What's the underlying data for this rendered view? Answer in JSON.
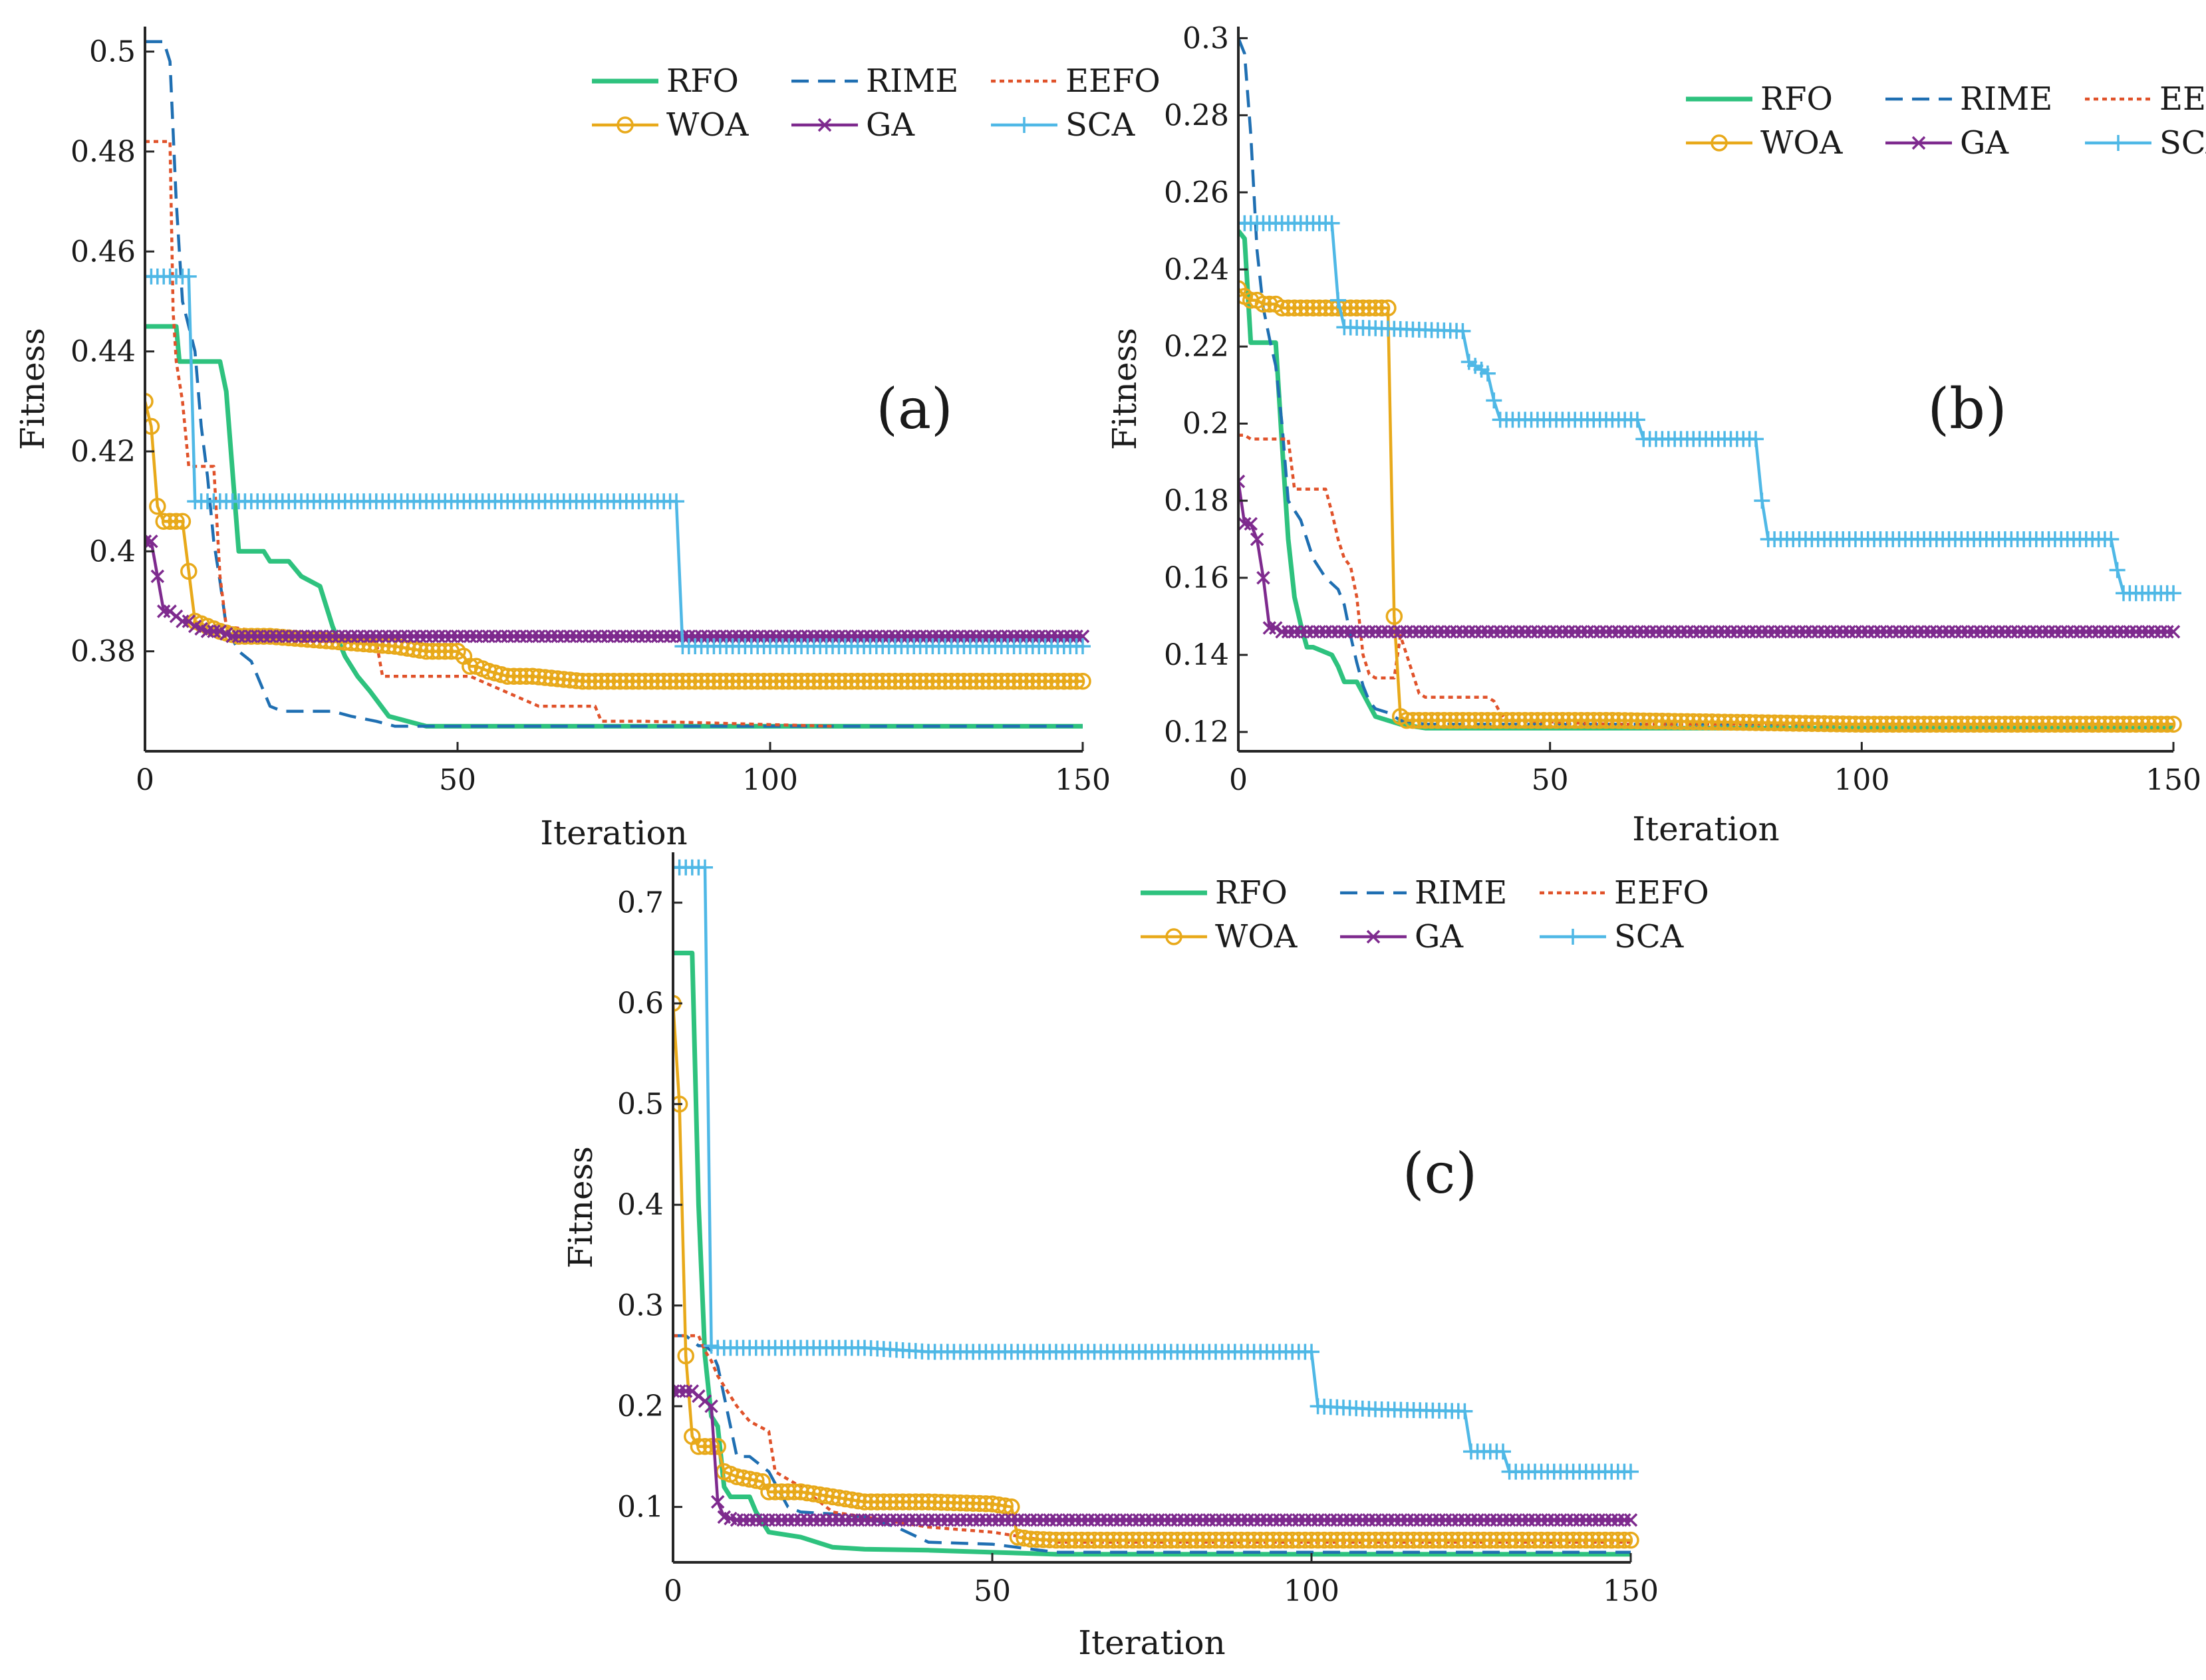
{
  "figure": {
    "panels": [
      "(a)",
      "(b)",
      "(c)"
    ]
  },
  "series_styles": {
    "RFO": {
      "color": "#2ec27e",
      "style": "solid",
      "marker": "none"
    },
    "RIME": {
      "color": "#1f6fb2",
      "style": "dashed",
      "marker": "none"
    },
    "EEFO": {
      "color": "#e0522a",
      "style": "dotted",
      "marker": "none"
    },
    "WOA": {
      "color": "#e8a91a",
      "style": "solid",
      "marker": "circle"
    },
    "GA": {
      "color": "#7e2a8e",
      "style": "solid",
      "marker": "x"
    },
    "SCA": {
      "color": "#4fb8e6",
      "style": "solid",
      "marker": "plus"
    }
  },
  "chart_data": [
    {
      "type": "line",
      "panel_label": "(a)",
      "xlabel": "Iteration",
      "ylabel": "Fitness",
      "xlim": [
        0,
        150
      ],
      "ylim": [
        0.36,
        0.505
      ],
      "xticks": [
        0,
        50,
        100,
        150
      ],
      "xtick_labels": [
        "0",
        "50",
        "100",
        "150"
      ],
      "yticks": [
        0.38,
        0.4,
        0.42,
        0.44,
        0.46,
        0.48,
        0.5
      ],
      "ytick_labels": [
        "0.38",
        "0.4",
        "0.42",
        "0.44",
        "0.46",
        "0.48",
        "0.5"
      ],
      "legend": {
        "placement": "top-right",
        "rows": [
          [
            "RFO",
            "RIME",
            "EEFO"
          ],
          [
            "WOA",
            "GA",
            "SCA"
          ]
        ]
      },
      "series": [
        {
          "name": "RFO",
          "x": [
            0,
            5,
            5.5,
            12,
            13,
            14,
            15,
            19,
            20,
            23,
            25,
            28,
            30,
            32,
            34,
            36,
            39,
            42,
            45,
            150
          ],
          "y": [
            0.445,
            0.445,
            0.438,
            0.438,
            0.432,
            0.416,
            0.4,
            0.4,
            0.398,
            0.398,
            0.395,
            0.393,
            0.385,
            0.379,
            0.375,
            0.372,
            0.367,
            0.366,
            0.365,
            0.365
          ]
        },
        {
          "name": "RIME",
          "x": [
            0,
            3,
            4,
            5,
            6,
            8,
            9,
            10,
            11,
            12,
            13,
            15,
            17,
            19,
            20,
            22,
            26,
            30,
            33,
            37,
            40,
            150
          ],
          "y": [
            0.502,
            0.502,
            0.498,
            0.47,
            0.45,
            0.44,
            0.425,
            0.415,
            0.402,
            0.394,
            0.385,
            0.38,
            0.378,
            0.372,
            0.369,
            0.368,
            0.368,
            0.368,
            0.367,
            0.366,
            0.365,
            0.365
          ]
        },
        {
          "name": "EEFO",
          "x": [
            0,
            4,
            4.5,
            5,
            6,
            7,
            8,
            11,
            12,
            13,
            18,
            24,
            37,
            38,
            52,
            63,
            72,
            73,
            80,
            110
          ],
          "y": [
            0.482,
            0.482,
            0.448,
            0.438,
            0.43,
            0.417,
            0.417,
            0.417,
            0.395,
            0.385,
            0.384,
            0.382,
            0.382,
            0.375,
            0.375,
            0.369,
            0.369,
            0.366,
            0.366,
            0.365
          ]
        },
        {
          "name": "WOA",
          "x": [
            0,
            1,
            2,
            3,
            4,
            5,
            6,
            7,
            8,
            10,
            12,
            15,
            20,
            30,
            40,
            45,
            50,
            51,
            52,
            53,
            55,
            58,
            62,
            70,
            100,
            150
          ],
          "y": [
            0.43,
            0.425,
            0.409,
            0.406,
            0.406,
            0.406,
            0.406,
            0.396,
            0.386,
            0.385,
            0.384,
            0.383,
            0.383,
            0.382,
            0.381,
            0.38,
            0.38,
            0.379,
            0.377,
            0.377,
            0.376,
            0.375,
            0.375,
            0.374,
            0.374,
            0.374
          ]
        },
        {
          "name": "GA",
          "x": [
            0,
            1,
            2,
            3,
            4,
            5,
            6,
            7,
            8,
            10,
            12,
            14,
            16,
            20,
            30,
            50,
            100,
            150
          ],
          "y": [
            0.402,
            0.402,
            0.395,
            0.388,
            0.388,
            0.387,
            0.386,
            0.386,
            0.385,
            0.384,
            0.384,
            0.383,
            0.383,
            0.383,
            0.383,
            0.383,
            0.383,
            0.383
          ]
        },
        {
          "name": "SCA",
          "x": [
            0,
            5,
            6,
            7,
            8,
            10,
            20,
            40,
            60,
            80,
            85,
            86,
            100,
            120,
            150
          ],
          "y": [
            0.455,
            0.455,
            0.455,
            0.455,
            0.41,
            0.41,
            0.41,
            0.41,
            0.41,
            0.41,
            0.41,
            0.381,
            0.381,
            0.381,
            0.381
          ]
        }
      ]
    },
    {
      "type": "line",
      "panel_label": "(b)",
      "xlabel": "Iteration",
      "ylabel": "Fitness",
      "xlim": [
        0,
        150
      ],
      "ylim": [
        0.115,
        0.303
      ],
      "xticks": [
        0,
        50,
        100,
        150
      ],
      "xtick_labels": [
        "0",
        "50",
        "100",
        "150"
      ],
      "yticks": [
        0.12,
        0.14,
        0.16,
        0.18,
        0.2,
        0.22,
        0.24,
        0.26,
        0.28,
        0.3
      ],
      "ytick_labels": [
        "0.12",
        "0.14",
        "0.16",
        "0.18",
        "0.2",
        "0.22",
        "0.24",
        "0.26",
        "0.28",
        "0.3"
      ],
      "legend": {
        "placement": "top-right",
        "rows": [
          [
            "RFO",
            "RIME",
            "EEFO"
          ],
          [
            "WOA",
            "GA",
            "SCA"
          ]
        ]
      },
      "series": [
        {
          "name": "RFO",
          "x": [
            0,
            1,
            2,
            6,
            7,
            8,
            9,
            10,
            11,
            12,
            15,
            16,
            17,
            19,
            20,
            21,
            22,
            24,
            26,
            30,
            40,
            60,
            150
          ],
          "y": [
            0.25,
            0.248,
            0.221,
            0.221,
            0.195,
            0.17,
            0.155,
            0.148,
            0.142,
            0.142,
            0.14,
            0.137,
            0.133,
            0.133,
            0.13,
            0.127,
            0.124,
            0.123,
            0.122,
            0.121,
            0.121,
            0.121,
            0.121
          ]
        },
        {
          "name": "RIME",
          "x": [
            0,
            1,
            2,
            3,
            4,
            5,
            6,
            7,
            8,
            10,
            12,
            14,
            16,
            17,
            18,
            19,
            20,
            21,
            22,
            24,
            26,
            30,
            150
          ],
          "y": [
            0.3,
            0.296,
            0.275,
            0.245,
            0.23,
            0.222,
            0.215,
            0.2,
            0.18,
            0.175,
            0.165,
            0.16,
            0.157,
            0.153,
            0.145,
            0.138,
            0.132,
            0.128,
            0.126,
            0.125,
            0.123,
            0.122,
            0.122
          ]
        },
        {
          "name": "EEFO",
          "x": [
            0,
            1,
            2,
            8,
            9,
            14,
            15,
            16,
            17,
            18,
            19,
            20,
            21,
            22,
            25,
            26,
            27,
            28,
            29,
            30,
            40,
            41,
            42,
            43,
            60,
            150
          ],
          "y": [
            0.197,
            0.197,
            0.196,
            0.196,
            0.183,
            0.183,
            0.177,
            0.17,
            0.165,
            0.163,
            0.155,
            0.14,
            0.135,
            0.134,
            0.134,
            0.145,
            0.14,
            0.135,
            0.13,
            0.129,
            0.129,
            0.128,
            0.125,
            0.123,
            0.122,
            0.122
          ]
        },
        {
          "name": "WOA",
          "x": [
            0,
            1,
            2,
            3,
            4,
            5,
            6,
            7,
            8,
            10,
            15,
            20,
            24,
            25,
            26,
            27,
            28,
            30,
            40,
            60,
            100,
            150
          ],
          "y": [
            0.235,
            0.233,
            0.232,
            0.232,
            0.231,
            0.231,
            0.231,
            0.23,
            0.23,
            0.23,
            0.23,
            0.23,
            0.23,
            0.15,
            0.124,
            0.123,
            0.123,
            0.123,
            0.123,
            0.123,
            0.122,
            0.122
          ]
        },
        {
          "name": "GA",
          "x": [
            0,
            1,
            2,
            3,
            4,
            5,
            6,
            7,
            10,
            20,
            50,
            100,
            150
          ],
          "y": [
            0.185,
            0.174,
            0.174,
            0.17,
            0.16,
            0.147,
            0.147,
            0.146,
            0.146,
            0.146,
            0.146,
            0.146,
            0.146
          ]
        },
        {
          "name": "SCA",
          "x": [
            0,
            15,
            16,
            17,
            36,
            37,
            40,
            41,
            42,
            64,
            65,
            83,
            84,
            85,
            140,
            141,
            142,
            150
          ],
          "y": [
            0.252,
            0.252,
            0.232,
            0.225,
            0.224,
            0.216,
            0.213,
            0.206,
            0.201,
            0.201,
            0.196,
            0.196,
            0.18,
            0.17,
            0.17,
            0.162,
            0.156,
            0.156
          ]
        }
      ]
    },
    {
      "type": "line",
      "panel_label": "(c)",
      "xlabel": "Iteration",
      "ylabel": "Fitness",
      "xlim": [
        0,
        150
      ],
      "ylim": [
        0.045,
        0.75
      ],
      "xticks": [
        0,
        50,
        100,
        150
      ],
      "xtick_labels": [
        "0",
        "50",
        "100",
        "150"
      ],
      "yticks": [
        0.1,
        0.2,
        0.3,
        0.4,
        0.5,
        0.6,
        0.7
      ],
      "ytick_labels": [
        "0.1",
        "0.2",
        "0.3",
        "0.4",
        "0.5",
        "0.6",
        "0.7"
      ],
      "legend": {
        "placement": "top-center",
        "rows": [
          [
            "RFO",
            "RIME",
            "EEFO"
          ],
          [
            "WOA",
            "GA",
            "SCA"
          ]
        ]
      },
      "series": [
        {
          "name": "RFO",
          "x": [
            0,
            1,
            3,
            4,
            5,
            6,
            7,
            8,
            9,
            12,
            13,
            14,
            15,
            20,
            25,
            30,
            40,
            50,
            60,
            150
          ],
          "y": [
            0.65,
            0.65,
            0.65,
            0.4,
            0.25,
            0.19,
            0.18,
            0.12,
            0.11,
            0.11,
            0.095,
            0.085,
            0.075,
            0.07,
            0.06,
            0.058,
            0.057,
            0.055,
            0.053,
            0.053
          ]
        },
        {
          "name": "RIME",
          "x": [
            0,
            1,
            2,
            3,
            4,
            5,
            6,
            7,
            8,
            10,
            12,
            15,
            18,
            20,
            25,
            30,
            35,
            40,
            50,
            60,
            150
          ],
          "y": [
            0.27,
            0.27,
            0.27,
            0.265,
            0.26,
            0.26,
            0.255,
            0.24,
            0.21,
            0.15,
            0.15,
            0.135,
            0.1,
            0.095,
            0.093,
            0.09,
            0.08,
            0.065,
            0.063,
            0.055,
            0.055
          ]
        },
        {
          "name": "EEFO",
          "x": [
            0,
            1,
            3,
            4,
            5,
            6,
            7,
            8,
            10,
            12,
            15,
            16,
            20,
            25,
            30,
            40,
            50,
            60,
            150
          ],
          "y": [
            0.27,
            0.27,
            0.27,
            0.27,
            0.255,
            0.245,
            0.23,
            0.22,
            0.2,
            0.185,
            0.175,
            0.135,
            0.12,
            0.095,
            0.09,
            0.08,
            0.075,
            0.065,
            0.065
          ]
        },
        {
          "name": "WOA",
          "x": [
            0,
            1,
            2,
            3,
            4,
            5,
            6,
            7,
            8,
            10,
            14,
            15,
            20,
            25,
            30,
            35,
            40,
            50,
            53,
            54,
            56,
            60,
            80,
            150
          ],
          "y": [
            0.6,
            0.5,
            0.25,
            0.17,
            0.16,
            0.16,
            0.16,
            0.16,
            0.135,
            0.13,
            0.125,
            0.115,
            0.115,
            0.11,
            0.105,
            0.105,
            0.105,
            0.103,
            0.1,
            0.07,
            0.068,
            0.067,
            0.067,
            0.067
          ]
        },
        {
          "name": "GA",
          "x": [
            0,
            1,
            2,
            3,
            4,
            5,
            6,
            7,
            8,
            10,
            20,
            50,
            100,
            150
          ],
          "y": [
            0.215,
            0.215,
            0.215,
            0.215,
            0.21,
            0.205,
            0.2,
            0.105,
            0.09,
            0.087,
            0.087,
            0.087,
            0.087,
            0.087
          ]
        },
        {
          "name": "SCA",
          "x": [
            0,
            4,
            5,
            6,
            7,
            10,
            20,
            30,
            40,
            60,
            80,
            100,
            101,
            110,
            124,
            125,
            130,
            131,
            135,
            150
          ],
          "y": [
            0.735,
            0.735,
            0.735,
            0.26,
            0.258,
            0.258,
            0.258,
            0.258,
            0.254,
            0.254,
            0.254,
            0.254,
            0.2,
            0.197,
            0.195,
            0.155,
            0.155,
            0.135,
            0.135,
            0.135
          ]
        }
      ]
    }
  ]
}
